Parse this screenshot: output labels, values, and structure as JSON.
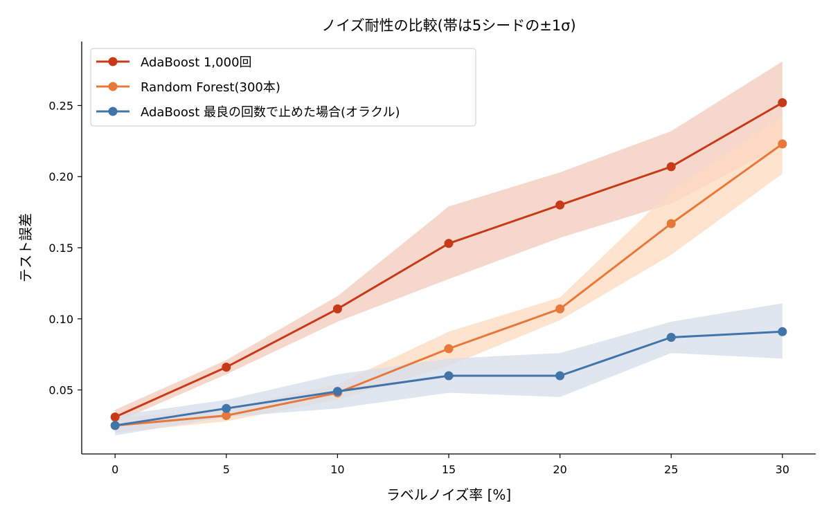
{
  "chart_data": {
    "type": "line",
    "title": "ノイズ耐性の比較(帯は5シードの±1σ)",
    "xlabel": "ラベルノイズ率 [%]",
    "ylabel": "テスト誤差",
    "x": [
      0,
      5,
      10,
      15,
      20,
      25,
      30
    ],
    "xlim": [
      -1.5,
      31.5
    ],
    "ylim": [
      0.005,
      0.295
    ],
    "xticks": [
      0,
      5,
      10,
      15,
      20,
      25,
      30
    ],
    "yticks": [
      0.05,
      0.1,
      0.15,
      0.2,
      0.25
    ],
    "ytick_labels": [
      "0.05",
      "0.10",
      "0.15",
      "0.20",
      "0.25"
    ],
    "grid": false,
    "legend_position": "upper-left",
    "series": [
      {
        "name": "AdaBoost 1,000回",
        "color": "#c8391a",
        "band_color": "#f2c9b9",
        "values": [
          0.031,
          0.066,
          0.107,
          0.153,
          0.18,
          0.207,
          0.252
        ],
        "band_lower": [
          0.027,
          0.061,
          0.098,
          0.128,
          0.157,
          0.181,
          0.222
        ],
        "band_upper": [
          0.036,
          0.071,
          0.116,
          0.179,
          0.203,
          0.232,
          0.281
        ]
      },
      {
        "name": "Random Forest(300本)",
        "color": "#e8773a",
        "band_color": "#fdd9bf",
        "values": [
          0.025,
          0.032,
          0.048,
          0.079,
          0.107,
          0.167,
          0.223
        ],
        "band_lower": [
          0.02,
          0.028,
          0.043,
          0.067,
          0.099,
          0.145,
          0.202
        ],
        "band_upper": [
          0.03,
          0.037,
          0.054,
          0.091,
          0.115,
          0.19,
          0.243
        ]
      },
      {
        "name": "AdaBoost 最良の回数で止めた場合(オラクル)",
        "color": "#4174a8",
        "band_color": "#d4deeb",
        "values": [
          0.025,
          0.037,
          0.049,
          0.06,
          0.06,
          0.087,
          0.091
        ],
        "band_lower": [
          0.018,
          0.031,
          0.037,
          0.048,
          0.045,
          0.076,
          0.072
        ],
        "band_upper": [
          0.032,
          0.043,
          0.061,
          0.072,
          0.076,
          0.098,
          0.111
        ]
      }
    ]
  }
}
